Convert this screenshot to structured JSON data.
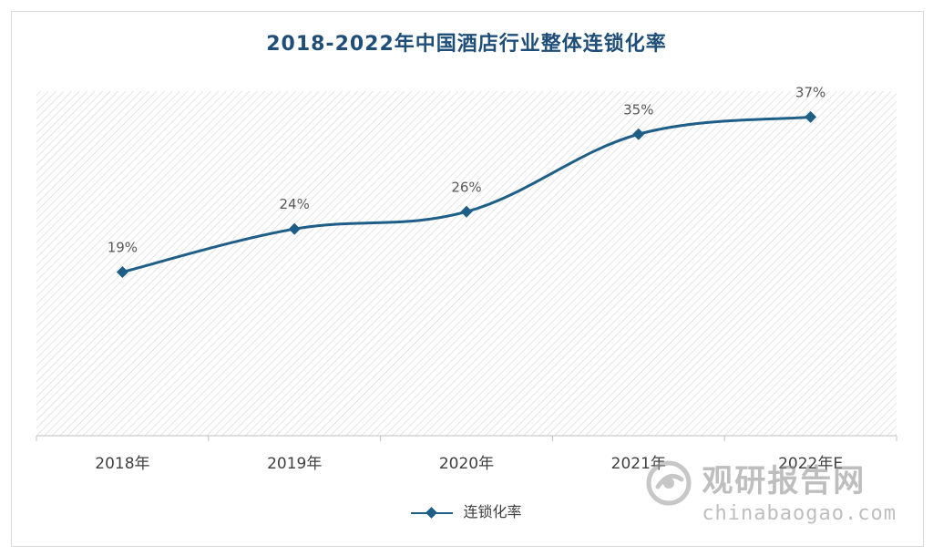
{
  "chart_data": {
    "type": "line",
    "title": "2018-2022年中国酒店行业整体连锁化率",
    "categories": [
      "2018年",
      "2019年",
      "2020年",
      "2021年",
      "2022年E"
    ],
    "series": [
      {
        "name": "连锁化率",
        "values": [
          19,
          24,
          26,
          35,
          37
        ],
        "labels": [
          "19%",
          "24%",
          "26%",
          "35%",
          "37%"
        ]
      }
    ],
    "ylim": [
      0,
      40
    ],
    "grid": false,
    "legend": "bottom",
    "colors": {
      "line": "#1f5f87",
      "title": "#1f4e79",
      "hatch": "#d6d6d6"
    }
  },
  "watermark": {
    "cn": "观研报告网",
    "en": "chinabaogao.com",
    "icon": "chinabaogao-logo-icon"
  }
}
